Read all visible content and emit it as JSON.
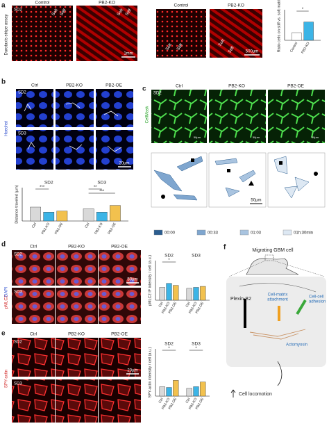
{
  "panel_a": {
    "label": "a",
    "side_label": "Durotaxis stripe assay",
    "columns": [
      "Control",
      "PB2-KO"
    ],
    "row_label": "SD2",
    "stripe_labels": [
      "Soft",
      "Stiff",
      "Soft",
      "Stiff"
    ],
    "scale_bar": "1mm",
    "zoom_columns": [
      "Control",
      "PB2-KO"
    ],
    "zoom_labels": [
      "Soft",
      "Stiff",
      "Soft",
      "Stiff"
    ],
    "zoom_scale_bar": "500µm",
    "chart": {
      "type": "bar",
      "y_label": "Ratio cells on stiff vs. soft matrix",
      "categories": [
        "Control",
        "PB2-KO"
      ],
      "values": [
        1.0,
        2.4
      ],
      "colors": [
        "#ffffff",
        "#3cb4e6"
      ],
      "ylim": [
        0,
        4
      ],
      "significance": [
        "*"
      ]
    }
  },
  "panel_b": {
    "label": "b",
    "columns": [
      "Ctrl",
      "PB2-KO",
      "PB2-OE"
    ],
    "rows": [
      "SD2",
      "SD3"
    ],
    "side_label": "Hoechst",
    "scale_bar": "20µm",
    "chart": {
      "type": "bar",
      "y_label": "Distance traveled (µm)",
      "categories": [
        "Ctrl",
        "PB2-KO",
        "PB2-OE"
      ],
      "colors": [
        "#d9d9d9",
        "#3cb4e6",
        "#f2c14e"
      ],
      "ylim": [
        0,
        60
      ],
      "groups": [
        {
          "name": "SD2",
          "values": [
            25,
            16,
            18
          ]
        },
        {
          "name": "SD3",
          "values": [
            22,
            16,
            28
          ]
        }
      ],
      "significance": [
        "***",
        "***",
        "**"
      ]
    }
  },
  "panel_c": {
    "label": "c",
    "columns": [
      "Ctrl",
      "PB2-KO",
      "PB2-OE"
    ],
    "row_label": "SD2",
    "side_label": "CellMask",
    "scale_bars": [
      "50µm",
      "50µm",
      "50µm"
    ],
    "track_scale_bar": "50µm",
    "legend": {
      "items": [
        "00:00",
        "00:33",
        "01:03",
        "01h:30min"
      ],
      "colors": [
        "#2b5d8f",
        "#7fa6cf",
        "#a9c4e0",
        "#dde8f3"
      ]
    }
  },
  "panel_d": {
    "label": "d",
    "columns": [
      "Ctrl",
      "PB2-KO",
      "PB2-OE"
    ],
    "rows": [
      "SD2",
      "SD3"
    ],
    "side_label": [
      "pMLC2",
      "DAPI"
    ],
    "scale_bar": "50µm",
    "chart": {
      "type": "bar",
      "y_label": "pMLC2 IF intensity / cell (a.u.)",
      "categories": [
        "Ctrl",
        "PB2-KO",
        "PB2-OE"
      ],
      "colors": [
        "#d9d9d9",
        "#3cb4e6",
        "#f2c14e"
      ],
      "ylim": [
        0,
        40
      ],
      "groups": [
        {
          "name": "SD2",
          "values": [
            13,
            17,
            15
          ]
        },
        {
          "name": "SD3",
          "values": [
            12,
            13,
            14
          ]
        }
      ],
      "significance": [
        "*"
      ]
    }
  },
  "panel_e": {
    "label": "e",
    "columns": [
      "Ctrl",
      "PB2-KO",
      "PB2-OE"
    ],
    "rows": [
      "SD2",
      "SD3"
    ],
    "side_label": "SPY-actin",
    "scale_bar": "20µm",
    "chart": {
      "type": "bar",
      "y_label": "SPY-actin intensity / cell (a.u.)",
      "categories": [
        "Ctrl",
        "PB2-KO",
        "PB2-OE"
      ],
      "colors": [
        "#d9d9d9",
        "#3cb4e6",
        "#f2c14e"
      ],
      "ylim": [
        0,
        60
      ],
      "groups": [
        {
          "name": "SD2",
          "values": [
            12,
            11,
            20
          ]
        },
        {
          "name": "SD3",
          "values": [
            10,
            12,
            18
          ]
        }
      ],
      "significance": [
        "*",
        "*"
      ]
    }
  },
  "panel_f": {
    "label": "f",
    "title": "Migrating GBM cell",
    "receptor": "Plexin-B2",
    "matrix_label": [
      "Cell-matrix",
      "attachment"
    ],
    "adhesion_label": [
      "Cell-cell",
      "adhesion"
    ],
    "actomyosin": "Actomyosin",
    "outcome": "Cell locomotion"
  }
}
